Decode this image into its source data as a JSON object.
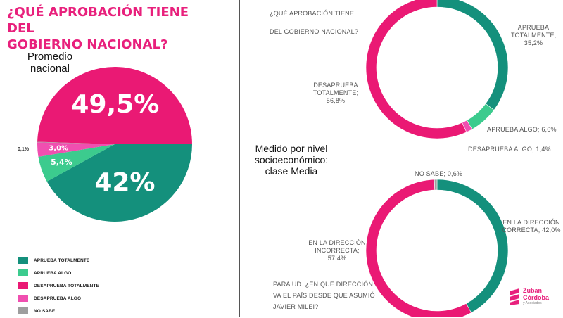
{
  "colors": {
    "teal": "#14907c",
    "light_green": "#3ccb8e",
    "magenta": "#ea1974",
    "pink": "#f04fb0",
    "gray": "#9e9e9e",
    "title": "#e8207c"
  },
  "left_panel": {
    "title_line1": "¿QUÉ APROBACIÓN TIENE DEL",
    "title_line2": "GOBIERNO NACIONAL?",
    "avg_label_line1": "Promedio",
    "avg_label_line2": "nacional"
  },
  "legend": [
    {
      "label": "APRUEBA TOTALMENTE",
      "color": "#14907c"
    },
    {
      "label": "APRUEBA ALGO",
      "color": "#3ccb8e"
    },
    {
      "label": "DESAPRUEBA TOTALMENTE",
      "color": "#ea1974"
    },
    {
      "label": "DESAPRUEBA ALGO",
      "color": "#f04fb0"
    },
    {
      "label": "NO SABE",
      "color": "#9e9e9e"
    }
  ],
  "right_panel": {
    "donut1_question_line1": "¿QUÉ APROBACIÓN TIENE",
    "donut1_question_line2": "DEL GOBIERNO NACIONAL?",
    "subgroup_line1": "Medido por nivel",
    "subgroup_line2": "socioeconómico:",
    "subgroup_line3": "clase Media",
    "donut2_question_line1": "PARA UD. ¿EN QUÉ DIRECCIÓN",
    "donut2_question_line2": "VA EL PAÍS DESDE QUE ASUMIÓ",
    "donut2_question_line3": "JAVIER MILEI?",
    "logo_line1": "Zuban",
    "logo_line2": "Córdoba",
    "logo_line3": "y Asociados"
  },
  "chart_data": [
    {
      "type": "pie",
      "title": "¿QUÉ APROBACIÓN TIENE DEL GOBIERNO NACIONAL? — Promedio nacional",
      "slices": [
        {
          "name": "APRUEBA TOTALMENTE",
          "value": 42.0,
          "label": "42%",
          "color": "#14907c"
        },
        {
          "name": "APRUEBA ALGO",
          "value": 5.4,
          "label": "5,4%",
          "color": "#3ccb8e"
        },
        {
          "name": "DESAPRUEBA ALGO",
          "value": 3.0,
          "label": "3,0%",
          "color": "#f04fb0"
        },
        {
          "name": "NO SABE",
          "value": 0.1,
          "label": "0,1%",
          "color": "#9e9e9e"
        },
        {
          "name": "DESAPRUEBA TOTALMENTE",
          "value": 49.5,
          "label": "49,5%",
          "color": "#ea1974"
        }
      ]
    },
    {
      "type": "pie",
      "subtype": "donut",
      "title": "¿QUÉ APROBACIÓN TIENE DEL GOBIERNO NACIONAL?",
      "slices": [
        {
          "name": "APRUEBA TOTALMENTE",
          "value": 35.2,
          "label_line1": "APRUEBA",
          "label_line2": "TOTALMENTE;",
          "label_line3": "35,2%",
          "color": "#14907c"
        },
        {
          "name": "APRUEBA ALGO",
          "value": 6.6,
          "label_line1": "APRUEBA ALGO; 6,6%",
          "color": "#3ccb8e"
        },
        {
          "name": "DESAPRUEBA ALGO",
          "value": 1.4,
          "label_line1": "DESAPRUEBA ALGO; 1,4%",
          "color": "#f04fb0"
        },
        {
          "name": "DESAPRUEBA TOTALMENTE",
          "value": 56.8,
          "label_line1": "DESAPRUEBA",
          "label_line2": "TOTALMENTE;",
          "label_line3": "56,8%",
          "color": "#ea1974"
        }
      ]
    },
    {
      "type": "pie",
      "subtype": "donut",
      "title": "PARA UD. ¿EN QUÉ DIRECCIÓN VA EL PAÍS DESDE QUE ASUMIÓ JAVIER MILEI?",
      "slices": [
        {
          "name": "EN LA DIRECCIÓN CORRECTA",
          "value": 42.0,
          "label_line1": "EN LA DIRECCIÓN",
          "label_line2": "CORRECTA; 42,0%",
          "color": "#14907c"
        },
        {
          "name": "EN LA DIRECCIÓN INCORRECTA",
          "value": 57.4,
          "label_line1": "EN LA DIRECCIÓN",
          "label_line2": "INCORRECTA;",
          "label_line3": "57,4%",
          "color": "#ea1974"
        },
        {
          "name": "NO SABE",
          "value": 0.6,
          "label_line1": "NO SABE; 0,6%",
          "color": "#9e9e9e"
        }
      ]
    }
  ]
}
